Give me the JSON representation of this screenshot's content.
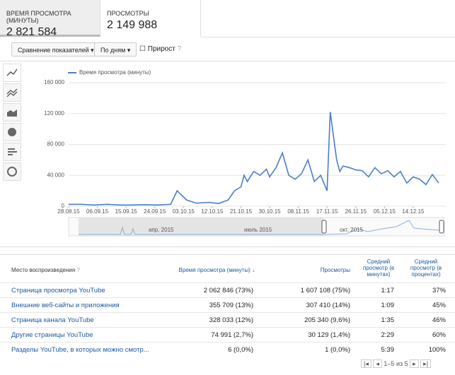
{
  "metrics": [
    {
      "label": "ВРЕМЯ ПРОСМОТРА (МИНУТЫ)",
      "value": "2 821 584"
    },
    {
      "label": "ПРОСМОТРЫ",
      "value": "2 149 988"
    }
  ],
  "controls": {
    "compare": "Сравнение показателей",
    "period": "По дням",
    "growth": "Прирост"
  },
  "chart_data": {
    "type": "line",
    "grid": true,
    "series": [
      {
        "name": "Время просмотра (минуты)",
        "color": "#4a7fc4",
        "values": [
          2500,
          2500,
          1500,
          2500,
          1500,
          1500,
          2000,
          1500,
          2500,
          20000,
          8000,
          4000,
          5000,
          3500,
          8000,
          20000,
          25000,
          40000,
          32000,
          45000,
          40000,
          48000,
          38000,
          50000,
          69000,
          40000,
          35000,
          42000,
          60000,
          32000,
          40000,
          20000,
          122000,
          60000,
          45000,
          52000,
          50000,
          47000,
          46000,
          38000,
          50000,
          42000,
          46000,
          38000,
          45000,
          30000,
          38000,
          35000,
          28000,
          41000,
          30000
        ]
      }
    ],
    "x": [
      "28.08.15",
      "01.09.15",
      "05.09.15",
      "09.09.15",
      "13.09.15",
      "17.09.15",
      "21.09.15",
      "25.09.15",
      "29.09.15",
      "01.10.15",
      "04.10.15",
      "07.10.15",
      "11.10.15",
      "14.10.15",
      "17.10.15",
      "19.10.15",
      "21.10.15",
      "22.10.15",
      "23.10.15",
      "25.10.15",
      "27.10.15",
      "29.10.15",
      "30.10.15",
      "01.11.15",
      "03.11.15",
      "05.11.15",
      "07.11.15",
      "09.11.15",
      "11.11.15",
      "13.11.15",
      "15.11.15",
      "17.11.15",
      "18.11.15",
      "20.11.15",
      "21.11.15",
      "22.11.15",
      "24.11.15",
      "26.11.15",
      "28.11.15",
      "30.11.15",
      "02.12.15",
      "04.12.15",
      "06.12.15",
      "08.12.15",
      "10.12.15",
      "12.12.15",
      "14.12.15",
      "16.12.15",
      "18.12.15",
      "20.12.15",
      "22.12.15"
    ],
    "xlim": [
      "28.08.15",
      "22.12.15"
    ],
    "xticks": [
      "28.08.15",
      "06.09.15",
      "15.09.15",
      "24.09.15",
      "03.10.15",
      "12.10.15",
      "21.10.15",
      "30.10.15",
      "08.11.15",
      "17.11.15",
      "26.11.15",
      "05.12.15",
      "14.12.15"
    ],
    "ylim": [
      0,
      160000
    ],
    "yticks": [
      0,
      {
        "value": 40000,
        "label": "40 000"
      },
      {
        "value": 80000,
        "label": "80 000"
      },
      {
        "value": 120000,
        "label": "120 000"
      },
      {
        "value": 160000,
        "label": "160 000"
      }
    ],
    "overview_labels": [
      "апр. 2015",
      "июль 2015",
      "окт. 2015"
    ]
  },
  "table": {
    "header": [
      "Место воспроизведения",
      "Время просмотра (минуты)",
      "Просмотры",
      "Средний просмотр (в минутах)",
      "Средний просмотр (в процентах)"
    ],
    "rows": [
      [
        "Страница просмотра YouTube",
        "2 062 846 (73%)",
        "1 607 108 (75%)",
        "1:17",
        "37%"
      ],
      [
        "Внешние веб-сайты и приложения",
        "355 709 (13%)",
        "307 410 (14%)",
        "1:09",
        "45%"
      ],
      [
        "Страница канала YouTube",
        "328 033 (12%)",
        "205 340 (9,6%)",
        "1:35",
        "46%"
      ],
      [
        "Другие страницы YouTube",
        "74 991 (2,7%)",
        "30 129 (1,4%)",
        "2:29",
        "60%"
      ],
      [
        "Разделы YouTube, в которых можно смотр...",
        "6 (0,0%)",
        "1 (0,0%)",
        "5:39",
        "100%"
      ]
    ],
    "pagination": "1–5 из 5"
  }
}
